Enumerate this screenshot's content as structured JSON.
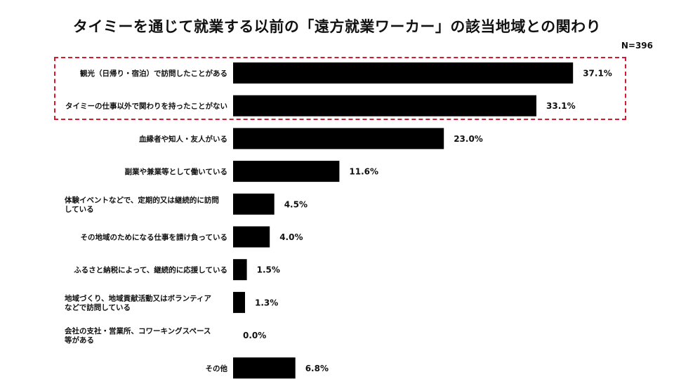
{
  "header": {
    "title": "タイミーを通じて就業する以前の「遠方就業ワーカー」の該当地域との関わり",
    "sample_size": "N=396"
  },
  "chart_data": {
    "type": "bar",
    "orientation": "horizontal",
    "title": "タイミーを通じて就業する以前の「遠方就業ワーカー」の該当地域との関わり",
    "xlabel": "",
    "ylabel": "",
    "xlim": [
      0,
      40
    ],
    "grid": false,
    "unit": "%",
    "bar_color": "#000000",
    "highlight_color": "#d7192d",
    "highlighted_categories": [
      0,
      1
    ],
    "categories": [
      [
        "観光（日帰り・宿泊）で訪問したことがある"
      ],
      [
        "タイミーの仕事以外で関わりを持ったことがない"
      ],
      [
        "血縁者や知人・友人がいる"
      ],
      [
        "副業や兼業等として働いている"
      ],
      [
        "体験イベントなどで、定期的又は継続的に訪問",
        "している"
      ],
      [
        "その地域のためになる仕事を請け負っている"
      ],
      [
        "ふるさと納税によって、継続的に応援している"
      ],
      [
        "地域づくり、地域貢献活動又はボランティア",
        "などで訪問している"
      ],
      [
        "会社の支社・営業所、コワーキングスペース",
        "等がある"
      ],
      [
        "その他"
      ]
    ],
    "values": [
      37.1,
      33.1,
      23.0,
      11.6,
      4.5,
      4.0,
      1.5,
      1.3,
      0.0,
      6.8
    ],
    "value_labels": [
      "37.1%",
      "33.1%",
      "23.0%",
      "11.6%",
      "4.5%",
      "4.0%",
      "1.5%",
      "1.3%",
      "0.0%",
      "6.8%"
    ]
  }
}
